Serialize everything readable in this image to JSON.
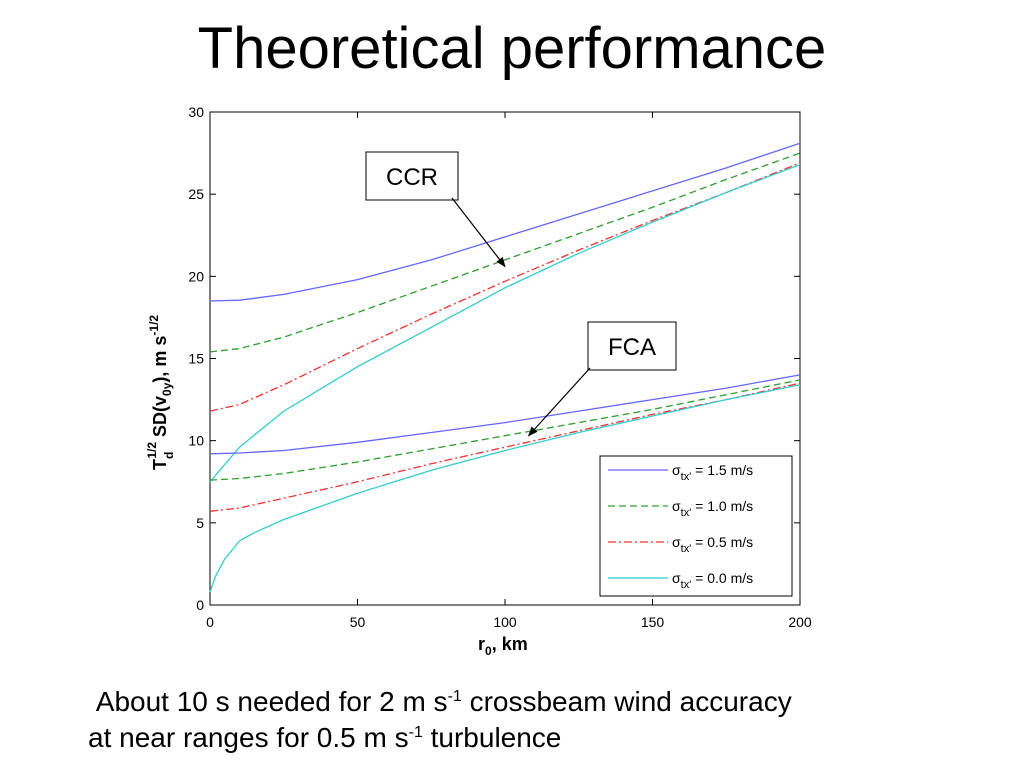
{
  "title": "Theoretical performance",
  "caption": {
    "line1_a": "About 10 s needed for 2 m s",
    "line1_sup": "-1",
    "line1_b": " crossbeam wind accuracy",
    "line2_a": "at near ranges for 0.5 m s",
    "line2_sup": "-1",
    "line2_b": " turbulence"
  },
  "chart_data": {
    "type": "line",
    "xlabel": "r0, km",
    "ylabel": "Td^1/2 SD(v0y), m s^-1/2",
    "xlim": [
      0,
      200
    ],
    "ylim": [
      0,
      30
    ],
    "xticks": [
      0,
      50,
      100,
      150,
      200
    ],
    "yticks": [
      0,
      5,
      10,
      15,
      20,
      25,
      30
    ],
    "grid": false,
    "legend_position": "bottom-right",
    "annotations": [
      {
        "text": "CCR",
        "points_to": [
          100,
          20.6
        ]
      },
      {
        "text": "FCA",
        "points_to": [
          108,
          10.3
        ]
      }
    ],
    "series": [
      {
        "name": "σtx' = 1.5 m/s",
        "group": "CCR",
        "color": "#6666ff",
        "dash": "solid",
        "x": [
          0,
          10,
          25,
          50,
          75,
          100,
          125,
          150,
          175,
          200
        ],
        "y": [
          18.5,
          18.55,
          18.9,
          19.8,
          21.0,
          22.4,
          23.8,
          25.2,
          26.6,
          28.1
        ]
      },
      {
        "name": "σtx' = 1.0 m/s",
        "group": "CCR",
        "color": "#2e9e2e",
        "dash": "dashed",
        "x": [
          0,
          10,
          25,
          50,
          75,
          100,
          125,
          150,
          175,
          200
        ],
        "y": [
          15.4,
          15.6,
          16.3,
          17.8,
          19.4,
          21.0,
          22.6,
          24.2,
          25.9,
          27.5
        ]
      },
      {
        "name": "σtx' = 0.5 m/s",
        "group": "CCR",
        "color": "#ee3333",
        "dash": "dashdot",
        "x": [
          0,
          10,
          25,
          50,
          75,
          100,
          125,
          150,
          175,
          200
        ],
        "y": [
          11.8,
          12.2,
          13.4,
          15.6,
          17.7,
          19.7,
          21.6,
          23.4,
          25.1,
          26.9
        ]
      },
      {
        "name": "σtx' = 0.0 m/s",
        "group": "CCR",
        "color": "#33cccc",
        "dash": "solid",
        "x": [
          0,
          10,
          25,
          50,
          75,
          100,
          125,
          150,
          175,
          200
        ],
        "y": [
          7.5,
          9.6,
          11.8,
          14.5,
          16.9,
          19.3,
          21.4,
          23.3,
          25.1,
          26.8
        ]
      },
      {
        "name": "σtx' = 1.5 m/s",
        "group": "FCA",
        "color": "#6666ff",
        "dash": "solid",
        "x": [
          0,
          10,
          25,
          50,
          75,
          100,
          125,
          150,
          175,
          200
        ],
        "y": [
          9.2,
          9.25,
          9.4,
          9.9,
          10.5,
          11.1,
          11.8,
          12.5,
          13.2,
          14.0
        ]
      },
      {
        "name": "σtx' = 1.0 m/s",
        "group": "FCA",
        "color": "#2e9e2e",
        "dash": "dashed",
        "x": [
          0,
          10,
          25,
          50,
          75,
          100,
          125,
          150,
          175,
          200
        ],
        "y": [
          7.6,
          7.7,
          8.0,
          8.7,
          9.5,
          10.3,
          11.1,
          11.9,
          12.8,
          13.7
        ]
      },
      {
        "name": "σtx' = 0.5 m/s",
        "group": "FCA",
        "color": "#ee3333",
        "dash": "dashdot",
        "x": [
          0,
          10,
          25,
          50,
          75,
          100,
          125,
          150,
          175,
          200
        ],
        "y": [
          5.7,
          5.9,
          6.5,
          7.5,
          8.6,
          9.6,
          10.6,
          11.6,
          12.5,
          13.5
        ]
      },
      {
        "name": "σtx' = 0.0 m/s",
        "group": "FCA",
        "color": "#33cccc",
        "dash": "solid",
        "x": [
          0,
          2,
          5,
          10,
          15,
          25,
          50,
          75,
          100,
          125,
          150,
          175,
          200
        ],
        "y": [
          0.8,
          1.8,
          2.8,
          3.9,
          4.4,
          5.2,
          6.8,
          8.2,
          9.4,
          10.5,
          11.5,
          12.5,
          13.4
        ]
      }
    ],
    "legend": [
      {
        "sigma": "σ",
        "sub": "tx'",
        "text": " = 1.5 m/s",
        "color": "#6666ff",
        "dash": "solid"
      },
      {
        "sigma": "σ",
        "sub": "tx'",
        "text": " = 1.0 m/s",
        "color": "#2e9e2e",
        "dash": "dashed"
      },
      {
        "sigma": "σ",
        "sub": "tx'",
        "text": " = 0.5 m/s",
        "color": "#ee3333",
        "dash": "dashdot"
      },
      {
        "sigma": "σ",
        "sub": "tx'",
        "text": " = 0.0 m/s",
        "color": "#33cccc",
        "dash": "solid"
      }
    ]
  }
}
